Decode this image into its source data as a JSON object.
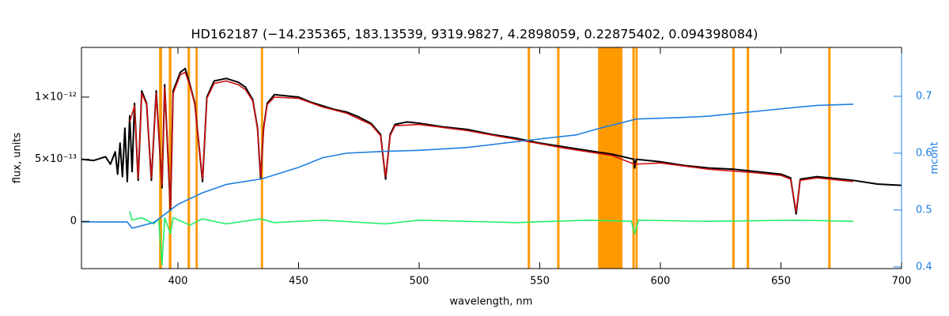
{
  "chart_data": {
    "type": "line",
    "title": "HD162187   (−14.235365, 183.13539, 9319.9827, 4.2898059, 0.22875402, 0.094398084)",
    "xlabel": "wavelength, nm",
    "ylabel": "flux, units",
    "y2label": "mcont",
    "xlim": [
      360,
      700
    ],
    "xticks": [
      400,
      450,
      500,
      550,
      600,
      650,
      700
    ],
    "ylim": [
      -3.8e-13,
      1.4e-12
    ],
    "yticks": [
      {
        "value": 0,
        "label": "0"
      },
      {
        "value": 5e-13,
        "label": "5×10⁻¹³"
      },
      {
        "value": 1e-12,
        "label": "1×10⁻¹²"
      }
    ],
    "y2lim": [
      0.397,
      0.786
    ],
    "y2ticks": [
      0.4,
      0.5,
      0.6,
      0.7
    ],
    "y2color": "#1e7fe0",
    "grid": false,
    "mask_color": "#ff9900",
    "masks": [
      [
        392.2,
        393.4
      ],
      [
        396.2,
        397.3
      ],
      [
        404,
        405
      ],
      [
        407.3,
        408.2
      ],
      [
        434.4,
        435.3
      ],
      [
        545,
        546
      ],
      [
        557.2,
        558.2
      ],
      [
        574.2,
        584.3
      ],
      [
        588.4,
        589.4
      ],
      [
        589.7,
        590.6
      ],
      [
        629.8,
        630.8
      ],
      [
        635.8,
        636.8
      ],
      [
        669.6,
        670.6
      ]
    ],
    "series": [
      {
        "color": "#000000",
        "x": [
          360,
          365,
          370,
          372,
          374,
          375,
          376,
          377,
          378,
          379,
          380,
          381,
          382,
          383.5,
          385,
          387,
          389,
          391,
          393.4,
          394.5,
          396.9,
          398,
          400,
          401,
          403,
          405,
          407,
          410.2,
          412,
          415,
          420,
          425,
          428,
          431,
          433,
          434.3,
          435.5,
          437,
          440,
          445,
          450,
          455,
          460,
          465,
          470,
          475,
          480,
          484,
          486.1,
          488,
          490,
          495,
          500,
          510,
          520,
          530,
          540,
          550,
          560,
          570,
          580,
          589,
          589.3,
          590,
          600,
          610,
          620,
          630,
          640,
          650,
          654,
          656.3,
          658,
          665,
          680,
          690,
          700
        ],
        "values": [
          5e-13,
          4.9e-13,
          5.2e-13,
          4.6e-13,
          5.6e-13,
          3.8e-13,
          6.3e-13,
          3.6e-13,
          7.5e-13,
          3.2e-13,
          8.5e-13,
          4e-13,
          9.5e-13,
          3.3e-13,
          1.05e-12,
          9.5e-13,
          3.3e-13,
          1.05e-12,
          2.7e-13,
          1.1e-12,
          9e-14,
          1.05e-12,
          1.15e-12,
          1.2e-12,
          1.23e-12,
          1.1e-12,
          9.5e-13,
          3.2e-13,
          1e-12,
          1.13e-12,
          1.15e-12,
          1.12e-12,
          1.08e-12,
          9.8e-13,
          7.5e-13,
          3.4e-13,
          7.5e-13,
          9.5e-13,
          1.02e-12,
          1.01e-12,
          1e-12,
          9.6e-13,
          9.3e-13,
          9e-13,
          8.8e-13,
          8.4e-13,
          7.9e-13,
          7e-13,
          3.4e-13,
          7e-13,
          7.8e-13,
          8e-13,
          7.9e-13,
          7.6e-13,
          7.4e-13,
          7e-13,
          6.7e-13,
          6.3e-13,
          6e-13,
          5.7e-13,
          5.4e-13,
          5e-13,
          4.3e-13,
          5e-13,
          4.8e-13,
          4.5e-13,
          4.3e-13,
          4.2e-13,
          4e-13,
          3.8e-13,
          3.5e-13,
          6e-14,
          3.4e-13,
          3.6e-13,
          3.3e-13,
          3e-13,
          2.9e-13
        ]
      },
      {
        "color": "#d01010",
        "x": [
          380,
          382,
          383.5,
          385,
          387,
          389,
          391,
          393.4,
          394.5,
          396.9,
          398,
          400,
          401,
          403,
          405,
          407,
          410.2,
          412,
          415,
          420,
          425,
          428,
          431,
          433,
          434.3,
          435.5,
          437,
          440,
          450,
          460,
          470,
          480,
          484,
          486.1,
          488,
          490,
          500,
          520,
          540,
          560,
          580,
          589.3,
          600,
          620,
          640,
          650,
          654,
          656.3,
          658,
          665,
          680
        ],
        "values": [
          8e-13,
          9.3e-13,
          3.5e-13,
          1.03e-12,
          9.4e-13,
          3.5e-13,
          1.03e-12,
          2.9e-13,
          1.08e-12,
          1.1e-13,
          1.03e-12,
          1.13e-12,
          1.18e-12,
          1.2e-12,
          1.09e-12,
          9.4e-13,
          3.4e-13,
          9.9e-13,
          1.11e-12,
          1.13e-12,
          1.1e-12,
          1.06e-12,
          9.7e-13,
          7.4e-13,
          3.6e-13,
          7.4e-13,
          9.4e-13,
          1e-12,
          9.9e-13,
          9.2e-13,
          8.7e-13,
          7.8e-13,
          6.9e-13,
          3.6e-13,
          6.9e-13,
          7.7e-13,
          7.8e-13,
          7.3e-13,
          6.6e-13,
          5.9e-13,
          5.3e-13,
          4.6e-13,
          4.7e-13,
          4.2e-13,
          3.9e-13,
          3.7e-13,
          3.4e-13,
          8e-14,
          3.3e-13,
          3.5e-13,
          3.2e-13
        ]
      },
      {
        "color": "#22ee66",
        "x": [
          380,
          381,
          385,
          390,
          392,
          393.4,
          394.5,
          396.9,
          398,
          405,
          410,
          420,
          434.3,
          440,
          460,
          486.1,
          500,
          540,
          570,
          588,
          589.3,
          591,
          620,
          656.3,
          680
        ],
        "values": [
          8e-14,
          1e-14,
          3e-14,
          -2e-14,
          2e-14,
          -3.5e-13,
          3e-14,
          -1e-13,
          3e-14,
          -3e-14,
          2e-14,
          -2e-14,
          2e-14,
          -1e-14,
          1e-14,
          -2e-14,
          1e-14,
          -1e-14,
          1e-14,
          0.0,
          -1e-13,
          1e-14,
          0.0,
          1e-14,
          0.0
        ]
      },
      {
        "color": "#1e7fe0",
        "axis": "y2",
        "x": [
          360,
          379,
          381,
          390,
          400,
          410,
          420,
          435,
          450,
          460,
          470,
          485,
          500,
          520,
          550,
          565,
          575,
          590,
          610,
          620,
          650,
          665,
          680
        ],
        "values": [
          0.479,
          0.479,
          0.468,
          0.478,
          0.51,
          0.53,
          0.545,
          0.555,
          0.575,
          0.592,
          0.6,
          0.603,
          0.605,
          0.61,
          0.625,
          0.632,
          0.644,
          0.66,
          0.663,
          0.665,
          0.678,
          0.684,
          0.686
        ]
      }
    ]
  }
}
